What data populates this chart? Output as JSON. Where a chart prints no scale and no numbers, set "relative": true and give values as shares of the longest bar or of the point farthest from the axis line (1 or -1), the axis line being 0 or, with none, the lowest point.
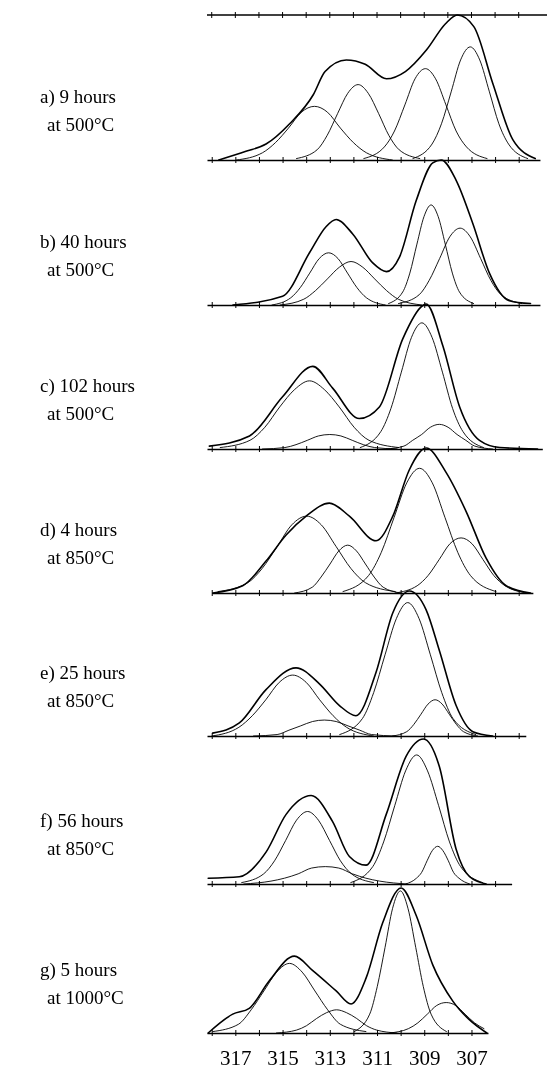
{
  "chart_data": [
    {
      "type": "line",
      "title": "a) 9 hours",
      "subtitle": "at 500°C",
      "relative": true,
      "tick_labels": false,
      "xlim": [
        318.2,
        304.1
      ],
      "xticks": [
        {
          "value": 318,
          "label": null
        },
        317,
        {
          "value": 316,
          "label": null
        },
        315,
        {
          "value": 314,
          "label": null
        },
        313,
        {
          "value": 312,
          "label": null
        },
        311,
        {
          "value": 310,
          "label": null
        },
        309,
        {
          "value": 308,
          "label": null
        },
        307,
        {
          "value": 306,
          "label": null
        },
        305
      ],
      "series": [
        {
          "color": "#000000",
          "x": [
            317.7,
            316.55,
            315.7,
            314.7,
            313.7,
            313.2,
            312.3,
            311.5,
            310.6,
            309.8,
            308.9,
            308.1,
            307.6,
            306.9,
            306.1,
            305.25,
            304.3
          ],
          "values": [
            0,
            0.06,
            0.11,
            0.25,
            0.45,
            0.61,
            0.69,
            0.66,
            0.56,
            0.61,
            0.76,
            0.94,
            1,
            0.92,
            0.53,
            0.14,
            0.01
          ]
        },
        {
          "color": "#000000",
          "x": [
            316.95,
            315.85,
            315.3,
            314.75,
            314.2,
            313.65,
            313.1,
            312.55,
            312.0,
            311.45,
            310.35
          ],
          "values": [
            0,
            0.05,
            0.12,
            0.22,
            0.33,
            0.37,
            0.33,
            0.22,
            0.12,
            0.05,
            0
          ]
        },
        {
          "color": "#000000",
          "x": [
            314.41,
            313.54,
            313.11,
            312.67,
            312.24,
            311.8,
            311.37,
            310.93,
            310.5,
            310.06,
            309.19
          ],
          "values": [
            0.01,
            0.07,
            0.17,
            0.32,
            0.46,
            0.52,
            0.46,
            0.32,
            0.17,
            0.07,
            0.01
          ]
        },
        {
          "color": "#000000",
          "x": [
            311.56,
            310.69,
            310.26,
            309.82,
            309.39,
            308.95,
            308.52,
            308.08,
            307.65,
            307.21,
            306.34
          ],
          "values": [
            0.01,
            0.09,
            0.2,
            0.38,
            0.56,
            0.63,
            0.56,
            0.38,
            0.2,
            0.09,
            0.01
          ]
        },
        {
          "color": "#000000",
          "x": [
            309.48,
            308.67,
            308.27,
            307.86,
            307.46,
            307.05,
            306.65,
            306.24,
            305.84,
            305.43,
            304.62
          ],
          "values": [
            0.01,
            0.11,
            0.25,
            0.47,
            0.69,
            0.78,
            0.69,
            0.47,
            0.25,
            0.11,
            0.01
          ]
        }
      ]
    },
    {
      "type": "line",
      "title": "b) 40 hours",
      "subtitle": "at 500°C",
      "relative": true,
      "tick_labels": false,
      "xlim": [
        318.2,
        304.1
      ],
      "xticks": [
        {
          "value": 318,
          "label": null
        },
        317,
        {
          "value": 316,
          "label": null
        },
        315,
        {
          "value": 314,
          "label": null
        },
        313,
        {
          "value": 312,
          "label": null
        },
        311,
        {
          "value": 310,
          "label": null
        },
        309,
        {
          "value": 308,
          "label": null
        },
        307,
        {
          "value": 306,
          "label": null
        },
        305
      ],
      "series": [
        {
          "color": "#000000",
          "x": [
            317.1,
            315.0,
            313.86,
            313.16,
            312.73,
            312.03,
            311.18,
            310.6,
            310.05,
            309.34,
            308.64,
            308.28,
            307.65,
            306.94,
            306.24,
            305.4,
            304.5
          ],
          "values": [
            0,
            0.06,
            0.36,
            0.54,
            0.59,
            0.49,
            0.29,
            0.23,
            0.33,
            0.72,
            0.98,
            1,
            0.86,
            0.56,
            0.22,
            0.03,
            0.01
          ]
        },
        {
          "color": "#000000",
          "x": [
            315.45,
            314.65,
            314.25,
            313.85,
            313.45,
            313.05,
            312.65,
            312.25,
            311.85,
            311.45,
            310.65
          ],
          "values": [
            0,
            0.05,
            0.12,
            0.22,
            0.32,
            0.36,
            0.32,
            0.22,
            0.12,
            0.05,
            0
          ]
        },
        {
          "color": "#000000",
          "x": [
            315.1,
            314.1,
            313.6,
            313.1,
            312.6,
            312.1,
            311.6,
            311.1,
            310.6,
            310.1,
            309.1
          ],
          "values": [
            0,
            0.04,
            0.1,
            0.18,
            0.26,
            0.3,
            0.26,
            0.18,
            0.1,
            0.04,
            0
          ]
        },
        {
          "color": "#000000",
          "x": [
            310.51,
            309.91,
            309.61,
            309.31,
            309.01,
            308.71,
            308.41,
            308.11,
            307.81,
            307.51,
            306.91
          ],
          "values": [
            0.01,
            0.09,
            0.22,
            0.42,
            0.61,
            0.69,
            0.61,
            0.42,
            0.22,
            0.09,
            0.01
          ]
        },
        {
          "color": "#000000",
          "x": [
            310.09,
            309.22,
            308.79,
            308.35,
            307.92,
            307.48,
            307.05,
            306.61,
            306.18,
            305.74,
            304.87
          ],
          "values": [
            0.01,
            0.07,
            0.17,
            0.32,
            0.47,
            0.53,
            0.47,
            0.32,
            0.17,
            0.07,
            0.01
          ]
        }
      ]
    },
    {
      "type": "line",
      "title": "c) 102 hours",
      "subtitle": "at 500°C",
      "relative": true,
      "tick_labels": false,
      "xlim": [
        318.2,
        304.0
      ],
      "xticks": [
        {
          "value": 318,
          "label": null
        },
        317,
        {
          "value": 316,
          "label": null
        },
        315,
        {
          "value": 314,
          "label": null
        },
        313,
        {
          "value": 312,
          "label": null
        },
        311,
        {
          "value": 310,
          "label": null
        },
        309,
        {
          "value": 308,
          "label": null
        },
        307,
        {
          "value": 306,
          "label": null
        },
        305
      ],
      "series": [
        {
          "color": "#000000",
          "x": [
            318.1,
            316.4,
            315.0,
            313.72,
            312.88,
            311.75,
            310.9,
            309.91,
            309.06,
            308.92,
            308.21,
            307.5,
            306.66,
            305.8,
            304.2
          ],
          "values": [
            0.02,
            0.09,
            0.36,
            0.57,
            0.42,
            0.21,
            0.29,
            0.76,
            0.99,
            1,
            0.71,
            0.29,
            0.06,
            0.01,
            0
          ]
        },
        {
          "color": "#000000",
          "x": [
            317.64,
            316.38,
            315.75,
            315.12,
            314.49,
            313.86,
            313.23,
            312.6,
            311.97,
            311.34,
            310.08
          ],
          "values": [
            0.01,
            0.06,
            0.15,
            0.29,
            0.41,
            0.47,
            0.41,
            0.29,
            0.15,
            0.06,
            0.01
          ]
        },
        {
          "color": "#000000",
          "x": [
            315.85,
            314.9,
            314.43,
            313.95,
            313.48,
            313.0,
            312.53,
            312.05,
            311.58,
            311.1,
            310.15
          ],
          "values": [
            0,
            0.01,
            0.03,
            0.06,
            0.09,
            0.1,
            0.09,
            0.06,
            0.03,
            0.01,
            0
          ]
        },
        {
          "color": "#000000",
          "x": [
            311.71,
            310.84,
            310.41,
            309.97,
            309.54,
            309.1,
            308.67,
            308.23,
            307.8,
            307.36,
            306.49
          ],
          "values": [
            0.01,
            0.12,
            0.28,
            0.53,
            0.77,
            0.87,
            0.77,
            0.53,
            0.28,
            0.12,
            0.01
          ]
        },
        {
          "color": "#000000",
          "x": [
            310.61,
            309.86,
            309.49,
            309.11,
            308.74,
            308.36,
            307.99,
            307.61,
            307.24,
            306.86,
            306.11
          ],
          "values": [
            0,
            0.02,
            0.06,
            0.1,
            0.15,
            0.17,
            0.15,
            0.1,
            0.06,
            0.02,
            0
          ]
        }
      ]
    },
    {
      "type": "line",
      "title": "d) 4 hours",
      "subtitle": "at 850°C",
      "relative": true,
      "tick_labels": false,
      "xlim": [
        318.0,
        304.4
      ],
      "xticks": [
        {
          "value": 318,
          "label": null
        },
        317,
        {
          "value": 316,
          "label": null
        },
        315,
        {
          "value": 314,
          "label": null
        },
        313,
        {
          "value": 312,
          "label": null
        },
        311,
        {
          "value": 310,
          "label": null
        },
        309,
        {
          "value": 308,
          "label": null
        },
        307,
        {
          "value": 306,
          "label": null
        },
        305
      ],
      "series": [
        {
          "color": "#000000",
          "x": [
            317.95,
            316.69,
            315.7,
            314.85,
            314.0,
            313.02,
            312.17,
            311.04,
            310.33,
            309.63,
            308.92,
            308.07,
            307.22,
            306.38,
            305.53,
            304.5
          ],
          "values": [
            0,
            0.05,
            0.22,
            0.4,
            0.53,
            0.62,
            0.53,
            0.36,
            0.53,
            0.85,
            1,
            0.83,
            0.56,
            0.24,
            0.05,
            0
          ]
        },
        {
          "color": "#000000",
          "x": [
            317.73,
            316.48,
            315.86,
            315.23,
            314.61,
            313.98,
            313.36,
            312.73,
            312.11,
            311.48,
            310.23
          ],
          "values": [
            0.01,
            0.07,
            0.17,
            0.32,
            0.47,
            0.53,
            0.47,
            0.32,
            0.17,
            0.07,
            0.01
          ]
        },
        {
          "color": "#000000",
          "x": [
            314.49,
            313.74,
            313.37,
            312.99,
            312.62,
            312.24,
            311.87,
            311.49,
            311.12,
            310.74,
            309.99
          ],
          "values": [
            0,
            0.04,
            0.11,
            0.2,
            0.29,
            0.33,
            0.29,
            0.2,
            0.11,
            0.04,
            0
          ]
        },
        {
          "color": "#000000",
          "x": [
            312.44,
            311.36,
            310.82,
            310.28,
            309.74,
            309.2,
            308.66,
            308.12,
            307.58,
            307.04,
            305.96
          ],
          "values": [
            0.01,
            0.12,
            0.28,
            0.52,
            0.76,
            0.86,
            0.76,
            0.52,
            0.28,
            0.12,
            0.01
          ]
        },
        {
          "color": "#000000",
          "x": [
            310.23,
            309.3,
            308.84,
            308.37,
            307.91,
            307.44,
            306.98,
            306.51,
            306.05,
            305.58,
            304.65
          ],
          "values": [
            0,
            0.05,
            0.12,
            0.23,
            0.34,
            0.38,
            0.34,
            0.23,
            0.12,
            0.05,
            0
          ]
        }
      ]
    },
    {
      "type": "line",
      "title": "e) 25 hours",
      "subtitle": "at 850°C",
      "relative": true,
      "tick_labels": false,
      "xlim": [
        318.2,
        304.7
      ],
      "xticks": [
        {
          "value": 318,
          "label": null
        },
        317,
        {
          "value": 316,
          "label": null
        },
        315,
        {
          "value": 314,
          "label": null
        },
        313,
        {
          "value": 312,
          "label": null
        },
        311,
        {
          "value": 310,
          "label": null
        },
        309,
        {
          "value": 308,
          "label": null
        },
        307,
        {
          "value": 306,
          "label": null
        },
        305
      ],
      "series": [
        {
          "color": "#000000",
          "x": [
            317.96,
            316.83,
            315.7,
            314.43,
            313.44,
            312.59,
            311.89,
            311.04,
            310.33,
            309.63,
            308.92,
            308.36,
            307.65,
            306.94,
            306.1
          ],
          "values": [
            0.02,
            0.09,
            0.32,
            0.47,
            0.36,
            0.21,
            0.14,
            0.44,
            0.85,
            1,
            0.87,
            0.59,
            0.21,
            0.03,
            0
          ]
        },
        {
          "color": "#000000",
          "x": [
            317.99,
            316.85,
            316.28,
            315.71,
            315.14,
            314.57,
            314.0,
            313.43,
            312.86,
            312.29,
            311.15
          ],
          "values": [
            0,
            0.06,
            0.14,
            0.25,
            0.37,
            0.42,
            0.37,
            0.25,
            0.14,
            0.06,
            0
          ]
        },
        {
          "color": "#000000",
          "x": [
            316.23,
            315.23,
            314.73,
            314.23,
            313.73,
            313.23,
            312.73,
            312.23,
            311.73,
            311.23,
            310.23
          ],
          "values": [
            0,
            0.01,
            0.04,
            0.07,
            0.1,
            0.11,
            0.1,
            0.07,
            0.04,
            0.01,
            0
          ]
        },
        {
          "color": "#000000",
          "x": [
            312.58,
            311.62,
            311.14,
            310.66,
            310.18,
            309.7,
            309.22,
            308.74,
            308.26,
            307.78,
            306.82
          ],
          "values": [
            0.01,
            0.12,
            0.3,
            0.56,
            0.81,
            0.92,
            0.81,
            0.56,
            0.3,
            0.12,
            0.01
          ]
        },
        {
          "color": "#000000",
          "x": [
            310.34,
            309.74,
            309.44,
            309.14,
            308.84,
            308.54,
            308.24,
            307.94,
            307.64,
            307.34,
            306.74
          ],
          "values": [
            0,
            0.03,
            0.08,
            0.15,
            0.22,
            0.25,
            0.22,
            0.15,
            0.08,
            0.03,
            0
          ]
        }
      ]
    },
    {
      "type": "line",
      "title": "f) 56 hours",
      "subtitle": "at 850°C",
      "relative": true,
      "tick_labels": false,
      "xlim": [
        318.2,
        305.3
      ],
      "xticks": [
        {
          "value": 318,
          "label": null
        },
        317,
        {
          "value": 316,
          "label": null
        },
        315,
        {
          "value": 314,
          "label": null
        },
        313,
        {
          "value": 312,
          "label": null
        },
        311,
        {
          "value": 310,
          "label": null
        },
        309,
        {
          "value": 308,
          "label": null
        },
        307,
        {
          "value": 306,
          "label": null
        }
      ],
      "series": [
        {
          "color": "#000000",
          "x": [
            318.15,
            316.83,
            315.7,
            314.85,
            313.79,
            312.88,
            312.17,
            311.46,
            310.61,
            309.77,
            309.03,
            308.36,
            307.65,
            307.08,
            306.38
          ],
          "values": [
            0.04,
            0.05,
            0.22,
            0.48,
            0.61,
            0.43,
            0.19,
            0.13,
            0.48,
            0.88,
            1,
            0.81,
            0.24,
            0.05,
            0
          ]
        },
        {
          "color": "#000000",
          "x": [
            316.73,
            315.8,
            315.34,
            314.87,
            314.41,
            313.94,
            313.48,
            313.01,
            312.55,
            312.08,
            311.15
          ],
          "values": [
            0.01,
            0.07,
            0.16,
            0.3,
            0.44,
            0.5,
            0.44,
            0.3,
            0.16,
            0.07,
            0.01
          ]
        },
        {
          "color": "#000000",
          "x": [
            316.64,
            315.49,
            314.92,
            314.34,
            313.77,
            313.19,
            312.62,
            312.04,
            311.47,
            310.89,
            309.74
          ],
          "values": [
            0,
            0.02,
            0.04,
            0.07,
            0.11,
            0.12,
            0.11,
            0.07,
            0.04,
            0.02,
            0
          ]
        },
        {
          "color": "#000000",
          "x": [
            312.11,
            311.18,
            310.72,
            310.25,
            309.79,
            309.32,
            308.86,
            308.39,
            307.93,
            307.46,
            306.53
          ],
          "values": [
            0.01,
            0.12,
            0.29,
            0.54,
            0.78,
            0.89,
            0.78,
            0.54,
            0.29,
            0.12,
            0.01
          ]
        },
        {
          "color": "#000000",
          "x": [
            309.78,
            309.33,
            309.11,
            308.88,
            308.66,
            308.43,
            308.21,
            307.98,
            307.76,
            307.53,
            307.08
          ],
          "values": [
            0,
            0.04,
            0.08,
            0.16,
            0.23,
            0.26,
            0.23,
            0.16,
            0.08,
            0.04,
            0
          ]
        }
      ]
    },
    {
      "type": "line",
      "title": "g) 5 hours",
      "subtitle": "at 1000°C",
      "relative": true,
      "tick_labels": "x",
      "xlim": [
        318.2,
        306.3
      ],
      "xticks": [
        {
          "value": 318,
          "label": null
        },
        317,
        {
          "value": 316,
          "label": null
        },
        315,
        {
          "value": 314,
          "label": null
        },
        313,
        {
          "value": 312,
          "label": null
        },
        311,
        {
          "value": 310,
          "label": null
        },
        309,
        {
          "value": 308,
          "label": null
        },
        307
      ],
      "series": [
        {
          "color": "#000000",
          "x": [
            318.15,
            317.11,
            316.41,
            315.56,
            314.5,
            313.72,
            312.73,
            312.1,
            311.46,
            310.76,
            309.98,
            309.34,
            308.64,
            307.79,
            307.08,
            306.35
          ],
          "values": [
            0,
            0.13,
            0.17,
            0.36,
            0.53,
            0.43,
            0.29,
            0.2,
            0.38,
            0.76,
            1,
            0.81,
            0.47,
            0.22,
            0.09,
            0
          ]
        },
        {
          "color": "#000000",
          "x": [
            317.95,
            316.87,
            316.33,
            315.79,
            315.25,
            314.71,
            314.17,
            313.63,
            313.09,
            312.55,
            311.47
          ],
          "values": [
            0.01,
            0.06,
            0.16,
            0.29,
            0.42,
            0.48,
            0.42,
            0.29,
            0.16,
            0.06,
            0.01
          ]
        },
        {
          "color": "#000000",
          "x": [
            315.26,
            314.41,
            313.99,
            313.56,
            313.14,
            312.71,
            312.29,
            311.86,
            311.44,
            311.01,
            310.16
          ],
          "values": [
            0,
            0.02,
            0.05,
            0.1,
            0.14,
            0.16,
            0.14,
            0.1,
            0.05,
            0.02,
            0
          ]
        },
        {
          "color": "#000000",
          "x": [
            311.96,
            311.31,
            310.99,
            310.66,
            310.34,
            310.01,
            309.69,
            309.36,
            309.04,
            308.71,
            308.06
          ],
          "values": [
            0.01,
            0.13,
            0.32,
            0.59,
            0.86,
            0.98,
            0.86,
            0.59,
            0.32,
            0.13,
            0.01
          ]
        },
        {
          "color": "#000000",
          "x": [
            310.47,
            309.67,
            309.27,
            308.87,
            308.47,
            308.07,
            307.67,
            307.27,
            306.87,
            306.47
          ],
          "values": [
            0,
            0.03,
            0.07,
            0.13,
            0.19,
            0.21,
            0.19,
            0.13,
            0.07,
            0.03
          ]
        }
      ]
    }
  ]
}
